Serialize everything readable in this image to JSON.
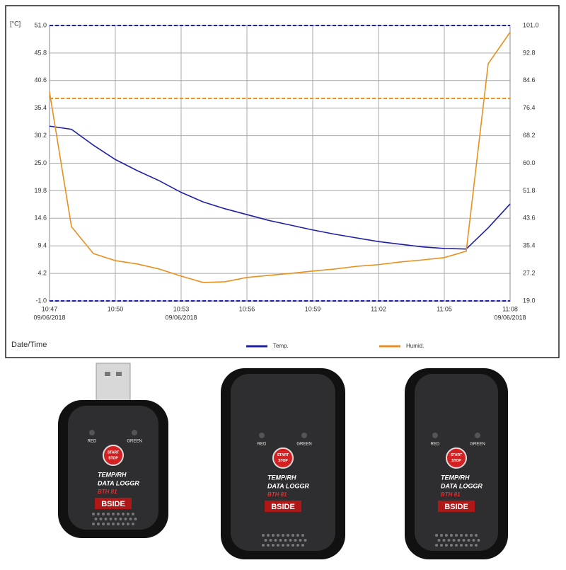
{
  "chart_data": {
    "type": "line",
    "y_unit": "[°C]",
    "x_label": "Date/Time",
    "x": [
      "10:47",
      null,
      null,
      "10:50",
      null,
      null,
      "10:53",
      null,
      null,
      "10:56",
      null,
      null,
      "10:59",
      null,
      null,
      "11:02",
      null,
      null,
      "11:05",
      null,
      null,
      "11:08"
    ],
    "x_dates": [
      "09/06/2018",
      null,
      null,
      null,
      null,
      null,
      "09/06/2018",
      null,
      null,
      null,
      null,
      null,
      null,
      null,
      null,
      null,
      null,
      null,
      null,
      null,
      null,
      "09/06/2018"
    ],
    "ylim": [
      -1,
      51
    ],
    "yticks": [
      {
        "value": -1,
        "label": "-1.0"
      },
      4.2,
      9.4,
      14.6,
      19.8,
      {
        "value": 25,
        "label": "25.0"
      },
      30.2,
      35.4,
      40.6,
      45.8,
      {
        "value": 51,
        "label": "51.0"
      }
    ],
    "y2lim": [
      19,
      101
    ],
    "y2ticks": [
      {
        "value": 19,
        "label": "19.0"
      },
      27.2,
      35.4,
      43.6,
      51.8,
      {
        "value": 60,
        "label": "60.0"
      },
      68.2,
      76.4,
      84.6,
      92.8,
      {
        "value": 101,
        "label": "101.0"
      }
    ],
    "grid": true,
    "series": [
      {
        "name": "Temp.",
        "color": "#1f1fa8",
        "values": [
          32.0,
          31.4,
          28.4,
          25.7,
          23.6,
          21.7,
          19.5,
          17.7,
          16.4,
          15.3,
          14.2,
          13.3,
          12.4,
          11.6,
          10.9,
          10.2,
          9.7,
          9.2,
          8.9,
          8.8,
          12.8,
          17.3
        ]
      },
      {
        "name": "Humid.",
        "color": "#e8901e",
        "axis": "y2",
        "values": [
          81.2,
          41.1,
          33.1,
          31.0,
          30.0,
          28.5,
          26.4,
          24.5,
          24.7,
          26.0,
          26.6,
          27.2,
          27.9,
          28.5,
          29.3,
          29.8,
          30.6,
          31.2,
          31.9,
          33.8,
          89.6,
          99.0
        ]
      }
    ],
    "thresholds": [
      {
        "axis": "y",
        "value": 51,
        "color": "#1f1fa8"
      },
      {
        "axis": "y",
        "value": -1,
        "color": "#1f1fa8"
      },
      {
        "axis": "y2",
        "value": 79.3,
        "color": "#e8901e"
      }
    ]
  },
  "devices": [
    {
      "usb": true,
      "led_red": "RED",
      "led_green": "GREEN",
      "button": [
        "START",
        "STOP"
      ],
      "line1": "TEMP/RH",
      "line2": "DATA LOGGR",
      "model": "BTH 81",
      "brand": "BSIDE"
    },
    {
      "usb": false,
      "led_red": "RED",
      "led_green": "GREEN",
      "button": [
        "START",
        "STOP"
      ],
      "line1": "TEMP/RH",
      "line2": "DATA LOGGR",
      "model": "BTH 81",
      "brand": "BSIDE"
    },
    {
      "usb": false,
      "led_red": "RED",
      "led_green": "GREEN",
      "button": [
        "START",
        "STOP"
      ],
      "line1": "TEMP/RH",
      "line2": "DATA LOGGR",
      "model": "BTH 81",
      "brand": "BSIDE"
    }
  ]
}
